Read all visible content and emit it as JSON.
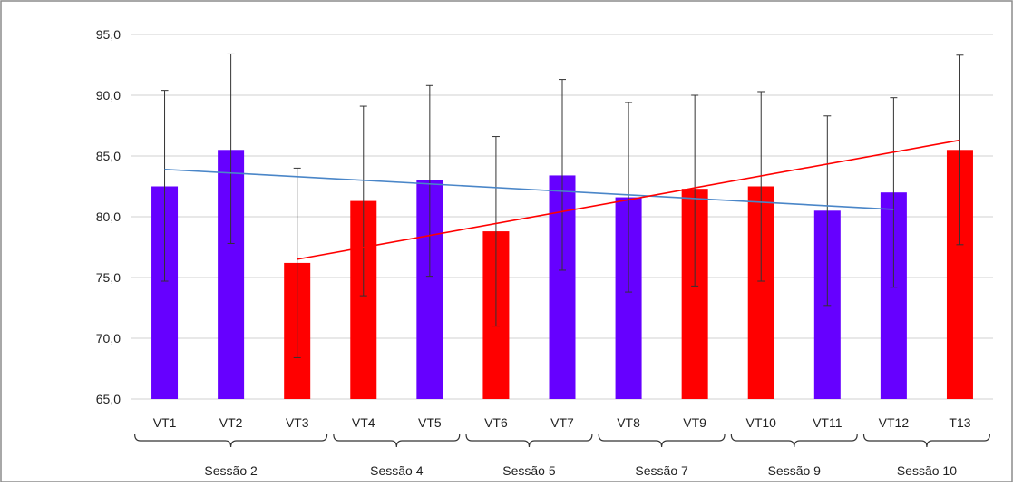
{
  "chart_data": {
    "type": "bar",
    "title": "",
    "xlabel": "",
    "ylabel": "",
    "ylim": [
      65,
      95
    ],
    "y_ticks": [
      "65,0",
      "70,0",
      "75,0",
      "80,0",
      "85,0",
      "90,0",
      "95,0"
    ],
    "y_tick_values": [
      65,
      70,
      75,
      80,
      85,
      90,
      95
    ],
    "grid": "horizontal",
    "legend": "none",
    "categories": [
      "VT1",
      "VT2",
      "VT3",
      "VT4",
      "VT5",
      "VT6",
      "VT7",
      "VT8",
      "VT9",
      "VT10",
      "VT11",
      "VT12",
      "T13"
    ],
    "values": [
      82.5,
      85.5,
      76.2,
      81.3,
      83.0,
      78.8,
      83.4,
      81.6,
      82.3,
      82.5,
      80.5,
      82.0,
      85.5
    ],
    "error_high": [
      90.4,
      93.4,
      84.0,
      89.1,
      90.8,
      86.6,
      91.3,
      89.4,
      90.0,
      90.3,
      88.3,
      89.8,
      93.3
    ],
    "error_low": [
      74.7,
      77.8,
      68.4,
      73.5,
      75.1,
      71.0,
      75.6,
      73.8,
      74.3,
      74.7,
      72.7,
      74.2,
      77.7
    ],
    "bar_colors": [
      "#6600ff",
      "#6600ff",
      "#ff0000",
      "#ff0000",
      "#6600ff",
      "#ff0000",
      "#6600ff",
      "#6600ff",
      "#ff0000",
      "#ff0000",
      "#6600ff",
      "#6600ff",
      "#ff0000"
    ],
    "groups": [
      {
        "label": "Sessão 2",
        "from": 0,
        "to": 2
      },
      {
        "label": "Sessão 4",
        "from": 3,
        "to": 4
      },
      {
        "label": "Sessão 5",
        "from": 5,
        "to": 6
      },
      {
        "label": "Sessão 7",
        "from": 7,
        "to": 8
      },
      {
        "label": "Sessão 9",
        "from": 9,
        "to": 10
      },
      {
        "label": "Sessão 10",
        "from": 11,
        "to": 12
      }
    ],
    "trendlines": [
      {
        "color": "#4a86c8",
        "from_category": 0,
        "to_category": 11,
        "y_start": 83.9,
        "y_end": 80.6
      },
      {
        "color": "#ff0000",
        "from_category": 2,
        "to_category": 12,
        "y_start": 76.5,
        "y_end": 86.3
      }
    ],
    "colors": {
      "purple": "#6600ff",
      "red": "#ff0000",
      "trend_blue": "#4a86c8",
      "trend_red": "#ff0000"
    }
  }
}
